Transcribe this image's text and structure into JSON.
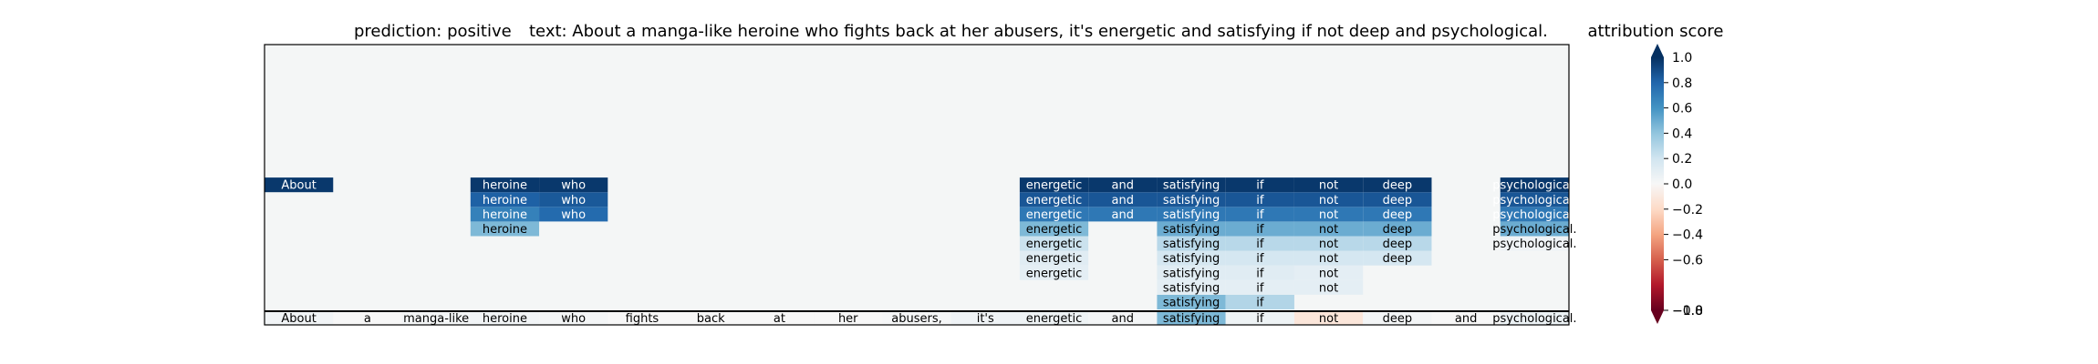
{
  "header": {
    "prediction": "prediction:  positive",
    "text": "text:  About a manga-like heroine who fights back at her abusers, it's energetic and satisfying if not deep and psychological."
  },
  "colorbar": {
    "title": "attribution score",
    "ticks": [
      "0.8",
      "0.6",
      "0.4",
      "0.2",
      "0.0",
      "−0.2",
      "−0.4",
      "−0.6",
      "−1.0"
    ],
    "top_overlap_label": "1.0",
    "bottom_overlap_label": "−0.8"
  },
  "chart_data": {
    "type": "heatmap",
    "title": "prediction:  positive     text:  About a manga-like heroine who fights back at her abusers, it's energetic and satisfying if not deep and psychological.",
    "colorbar_label": "attribution score",
    "colorbar_range": [
      -1.0,
      1.0
    ],
    "colormap": "RdBu",
    "tokens": [
      "About",
      "a",
      "manga-like",
      "heroine",
      "who",
      "fights",
      "back",
      "at",
      "her",
      "abusers,",
      "it's",
      "energetic",
      "and",
      "satisfying",
      "if",
      "not",
      "deep",
      "and",
      "psychological."
    ],
    "base_scores": [
      0.03,
      0.0,
      0.02,
      0.03,
      0.02,
      0.0,
      0.0,
      0.0,
      0.0,
      0.01,
      0.04,
      0.05,
      0.02,
      0.45,
      0.05,
      -0.12,
      0.02,
      0.0,
      0.06
    ],
    "layers": [
      {
        "level": 1,
        "scores": [
          null,
          null,
          null,
          null,
          null,
          null,
          null,
          null,
          null,
          null,
          null,
          null,
          null,
          0.45,
          0.3,
          null,
          null,
          null,
          null
        ]
      },
      {
        "level": 2,
        "scores": [
          null,
          null,
          null,
          null,
          null,
          null,
          null,
          null,
          null,
          null,
          null,
          null,
          null,
          0.1,
          0.1,
          0.1,
          null,
          null,
          null
        ]
      },
      {
        "level": 3,
        "scores": [
          null,
          null,
          null,
          null,
          null,
          null,
          null,
          null,
          null,
          null,
          null,
          0.1,
          null,
          0.12,
          0.12,
          0.1,
          null,
          null,
          null
        ]
      },
      {
        "level": 4,
        "scores": [
          null,
          null,
          null,
          null,
          null,
          null,
          null,
          null,
          null,
          null,
          null,
          0.12,
          null,
          0.18,
          0.18,
          0.18,
          0.18,
          null,
          null
        ]
      },
      {
        "level": 5,
        "scores": [
          null,
          null,
          null,
          null,
          null,
          null,
          null,
          null,
          null,
          null,
          null,
          0.22,
          null,
          0.28,
          0.28,
          0.28,
          0.28,
          null,
          0.04
        ]
      },
      {
        "level": 6,
        "scores": [
          null,
          null,
          null,
          0.45,
          null,
          null,
          null,
          null,
          null,
          null,
          null,
          0.45,
          null,
          0.5,
          0.5,
          0.5,
          0.5,
          null,
          0.5
        ]
      },
      {
        "level": 7,
        "scores": [
          null,
          null,
          null,
          0.68,
          0.78,
          null,
          null,
          null,
          null,
          null,
          null,
          0.72,
          0.72,
          0.72,
          0.72,
          0.72,
          0.72,
          null,
          0.72
        ]
      },
      {
        "level": 8,
        "scores": [
          null,
          null,
          null,
          0.82,
          0.85,
          null,
          null,
          null,
          null,
          null,
          null,
          0.86,
          0.86,
          0.86,
          0.86,
          0.86,
          0.86,
          null,
          0.86
        ]
      },
      {
        "level": 9,
        "scores": [
          0.97,
          null,
          null,
          0.97,
          0.97,
          null,
          null,
          null,
          null,
          null,
          null,
          0.97,
          0.97,
          0.97,
          0.97,
          0.97,
          0.97,
          null,
          0.97
        ]
      }
    ]
  }
}
